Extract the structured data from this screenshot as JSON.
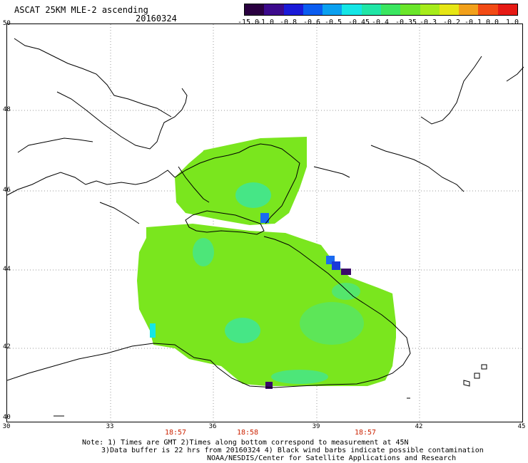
{
  "header": {
    "title": "ASCAT 25KM MLE-2 ascending",
    "date": "20160324"
  },
  "colorbar": {
    "labels": [
      "-15.0",
      "-1.0",
      "-0.8",
      "-0.6",
      "-0.5",
      "-0.45",
      "-0.4",
      "-0.35",
      "-0.3",
      "-0.2",
      "-0.1",
      "0.0",
      "1.0"
    ],
    "colors": [
      "#2a0040",
      "#3c0a8c",
      "#1a1ad8",
      "#0a5cf0",
      "#0aa0f0",
      "#14e6e6",
      "#20e6a6",
      "#3ae660",
      "#6ae62a",
      "#a6ec1a",
      "#e6e614",
      "#f2a01a",
      "#f24a14",
      "#e61a14"
    ]
  },
  "map": {
    "lat_labels": [
      "50",
      "48",
      "46",
      "44",
      "42",
      "40"
    ],
    "lon_labels": [
      "30",
      "33",
      "36",
      "39",
      "42",
      "45"
    ],
    "time_labels": [
      "18:57",
      "18:58",
      "18:57"
    ],
    "colors": {
      "land_outline": "#000000",
      "grid": "#9a9a9a",
      "data_main": "#7ae61e",
      "data_cyan": "#3ae6a0",
      "data_blue": "#1a6af0",
      "data_dark": "#3a0a6a"
    }
  },
  "footer": {
    "line1": "Note: 1) Times are GMT 2)Times along bottom correspond to measurement at 45N",
    "line2": "3)Data buffer is 22 hrs from 20160324 4) Black wind barbs indicate possible contamination",
    "line3": "NOAA/NESDIS/Center for Satellite Applications and Research"
  }
}
